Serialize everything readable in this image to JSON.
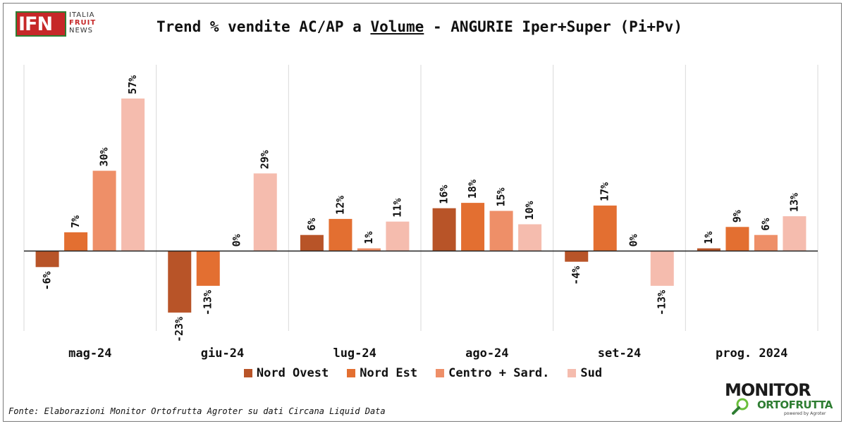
{
  "logo": {
    "text": "IFN",
    "line1": "ITALIA",
    "line2": "FRUIT",
    "line3": "NEWS"
  },
  "title": {
    "pre": "Trend % vendite AC/AP a ",
    "emph": "Volume",
    "post": " - ANGURIE Iper+Super (Pi+Pv)"
  },
  "source": "Fonte: Elaborazioni Monitor Ortofrutta Agroter su dati Circana Liquid Data",
  "brand": {
    "line1": "MONITOR",
    "line2": "ORTOFRUTTA",
    "line3": "powered by Agroter"
  },
  "colors": {
    "nord_ovest": "#b85428",
    "nord_est": "#e36f31",
    "centro_sard": "#ee8f68",
    "sud": "#f5bcae",
    "zero_line": "#222222",
    "grid": "#d9d9d9"
  },
  "chart_data": {
    "type": "bar",
    "categories": [
      "mag-24",
      "giu-24",
      "lug-24",
      "ago-24",
      "set-24",
      "prog. 2024"
    ],
    "series": [
      {
        "name": "Nord Ovest",
        "values": [
          -6,
          -23,
          6,
          16,
          -4,
          1
        ],
        "labels": [
          "-6%",
          "-23%",
          "6%",
          "16%",
          "-4%",
          "1%"
        ]
      },
      {
        "name": "Nord Est",
        "values": [
          7,
          -13,
          12,
          18,
          17,
          9
        ],
        "labels": [
          "7%",
          "-13%",
          "12%",
          "18%",
          "17%",
          "9%"
        ]
      },
      {
        "name": "Centro + Sard.",
        "values": [
          30,
          0,
          1,
          15,
          0,
          6
        ],
        "labels": [
          "30%",
          "0%",
          "1%",
          "15%",
          "0%",
          "6%"
        ]
      },
      {
        "name": "Sud",
        "values": [
          57,
          29,
          11,
          10,
          -13,
          13
        ],
        "labels": [
          "57%",
          "29%",
          "11%",
          "10%",
          "-13%",
          "13%"
        ]
      }
    ],
    "ylim": [
      -30,
      70
    ],
    "grid": "vertical separators",
    "legend_position": "bottom"
  }
}
